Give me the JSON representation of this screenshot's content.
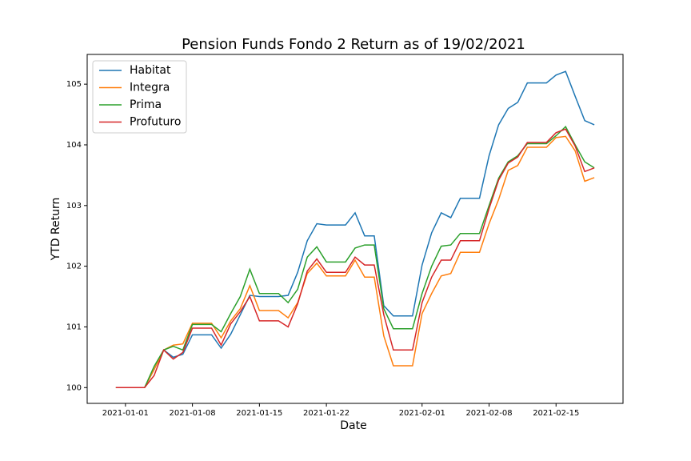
{
  "chart_data": {
    "type": "line",
    "title": "Pension Funds Fondo 2 Return as of 19/02/2021",
    "x_label": "Date",
    "y_label": "YTD Return",
    "x": [
      "2020-12-31",
      "2021-01-01",
      "2021-01-02",
      "2021-01-03",
      "2021-01-04",
      "2021-01-05",
      "2021-01-06",
      "2021-01-07",
      "2021-01-08",
      "2021-01-09",
      "2021-01-10",
      "2021-01-11",
      "2021-01-12",
      "2021-01-13",
      "2021-01-14",
      "2021-01-15",
      "2021-01-16",
      "2021-01-17",
      "2021-01-18",
      "2021-01-19",
      "2021-01-20",
      "2021-01-21",
      "2021-01-22",
      "2021-01-23",
      "2021-01-24",
      "2021-01-25",
      "2021-01-26",
      "2021-01-27",
      "2021-01-28",
      "2021-01-29",
      "2021-01-30",
      "2021-01-31",
      "2021-02-01",
      "2021-02-02",
      "2021-02-03",
      "2021-02-04",
      "2021-02-05",
      "2021-02-06",
      "2021-02-07",
      "2021-02-08",
      "2021-02-09",
      "2021-02-10",
      "2021-02-11",
      "2021-02-12",
      "2021-02-13",
      "2021-02-14",
      "2021-02-15",
      "2021-02-16",
      "2021-02-17",
      "2021-02-18",
      "2021-02-19"
    ],
    "series": [
      {
        "name": "Habitat",
        "color": "#1f77b4",
        "values": [
          100,
          100,
          100,
          100,
          100.3,
          100.62,
          100.5,
          100.55,
          100.87,
          100.87,
          100.87,
          100.65,
          100.88,
          101.2,
          101.52,
          101.5,
          101.5,
          101.5,
          101.52,
          101.9,
          102.42,
          102.7,
          102.68,
          102.68,
          102.68,
          102.88,
          102.5,
          102.5,
          101.35,
          101.18,
          101.18,
          101.18,
          102.02,
          102.55,
          102.88,
          102.8,
          103.12,
          103.12,
          103.12,
          103.82,
          104.33,
          104.6,
          104.7,
          105.02,
          105.02,
          105.02,
          105.15,
          105.21,
          104.8,
          104.4,
          104.33
        ]
      },
      {
        "name": "Integra",
        "color": "#ff7f0e",
        "values": [
          100,
          100,
          100,
          100,
          100.3,
          100.62,
          100.7,
          100.72,
          101.06,
          101.06,
          101.06,
          100.82,
          101.1,
          101.3,
          101.68,
          101.27,
          101.27,
          101.27,
          101.15,
          101.4,
          101.88,
          102.05,
          101.84,
          101.84,
          101.84,
          102.1,
          101.82,
          101.82,
          100.85,
          100.36,
          100.36,
          100.36,
          101.22,
          101.55,
          101.84,
          101.88,
          102.23,
          102.23,
          102.23,
          102.7,
          103.1,
          103.58,
          103.66,
          103.96,
          103.96,
          103.96,
          104.12,
          104.14,
          103.9,
          103.4,
          103.46
        ]
      },
      {
        "name": "Prima",
        "color": "#2ca02c",
        "values": [
          100,
          100,
          100,
          100,
          100.35,
          100.62,
          100.68,
          100.62,
          101.04,
          101.04,
          101.04,
          100.92,
          101.22,
          101.5,
          101.95,
          101.55,
          101.55,
          101.55,
          101.4,
          101.62,
          102.15,
          102.32,
          102.07,
          102.07,
          102.07,
          102.3,
          102.35,
          102.35,
          101.3,
          100.97,
          100.97,
          100.97,
          101.55,
          102.0,
          102.33,
          102.35,
          102.54,
          102.54,
          102.54,
          103.0,
          103.45,
          103.72,
          103.82,
          104.02,
          104.02,
          104.02,
          104.15,
          104.3,
          104.0,
          103.72,
          103.62
        ]
      },
      {
        "name": "Profuturo",
        "color": "#d62728",
        "values": [
          100,
          100,
          100,
          100,
          100.2,
          100.62,
          100.47,
          100.58,
          100.98,
          100.98,
          100.98,
          100.7,
          101.05,
          101.25,
          101.5,
          101.1,
          101.1,
          101.1,
          101.0,
          101.38,
          101.92,
          102.12,
          101.9,
          101.9,
          101.9,
          102.15,
          102.02,
          102.02,
          101.2,
          100.62,
          100.62,
          100.62,
          101.4,
          101.82,
          102.1,
          102.1,
          102.42,
          102.42,
          102.42,
          102.95,
          103.42,
          103.7,
          103.8,
          104.04,
          104.04,
          104.04,
          104.2,
          104.26,
          103.98,
          103.56,
          103.62
        ]
      }
    ],
    "xlim": [
      "2020-12-28",
      "2021-02-22"
    ],
    "xticks": [
      "2021-01-01",
      "2021-01-08",
      "2021-01-15",
      "2021-01-22",
      "2021-02-01",
      "2021-02-08",
      "2021-02-15"
    ],
    "ylim": [
      99.74,
      105.49
    ],
    "yticks": [
      100,
      101,
      102,
      103,
      104,
      105
    ],
    "legend": "upper-left",
    "grid": false
  }
}
